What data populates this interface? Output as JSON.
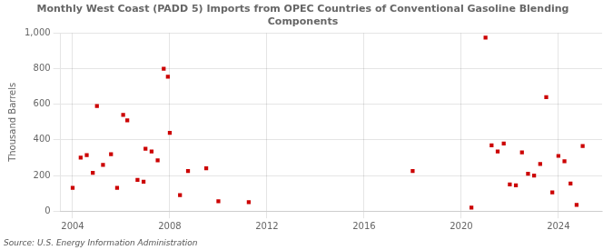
{
  "chart_data": {
    "type": "scatter",
    "title": "Monthly West Coast (PADD 5) Imports from OPEC Countries of Conventional Gasoline Blending\nComponents",
    "ylabel": "Thousand Barrels",
    "source": "Source: U.S. Energy Information Administration",
    "color": "#cc0000",
    "marker": "square",
    "grid": true,
    "xlim": [
      2003.5,
      2025.8
    ],
    "xticks": [
      2004,
      2008,
      2012,
      2016,
      2020,
      2024
    ],
    "ylim": [
      0,
      1000
    ],
    "yticks": [
      0,
      200,
      400,
      600,
      800,
      {
        "value": 1000,
        "label": "1,000"
      }
    ],
    "x": [
      2004.0,
      2004.33,
      2004.58,
      2004.83,
      2005.0,
      2005.25,
      2005.58,
      2005.83,
      2006.08,
      2006.25,
      2006.67,
      2006.92,
      2007.0,
      2007.25,
      2007.5,
      2007.75,
      2007.92,
      2008.0,
      2008.42,
      2008.75,
      2009.5,
      2010.0,
      2011.25,
      2018.0,
      2020.42,
      2021.0,
      2021.25,
      2021.5,
      2021.75,
      2022.0,
      2022.25,
      2022.5,
      2022.75,
      2023.0,
      2023.25,
      2023.5,
      2023.75,
      2024.0,
      2024.25,
      2024.5,
      2024.75,
      2025.0
    ],
    "values": [
      130,
      300,
      315,
      215,
      590,
      260,
      320,
      130,
      540,
      510,
      175,
      165,
      350,
      335,
      285,
      800,
      755,
      440,
      90,
      225,
      240,
      55,
      50,
      225,
      20,
      975,
      370,
      335,
      380,
      150,
      145,
      330,
      210,
      200,
      265,
      640,
      105,
      310,
      280,
      155,
      35,
      365
    ]
  }
}
